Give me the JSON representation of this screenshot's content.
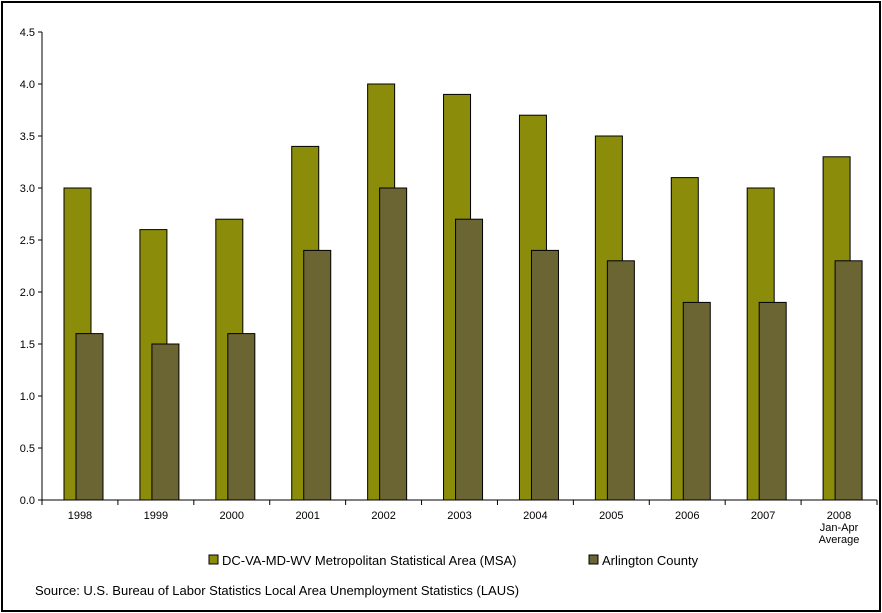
{
  "chart_data": {
    "type": "bar",
    "categories": [
      "1998",
      "1999",
      "2000",
      "2001",
      "2002",
      "2003",
      "2004",
      "2005",
      "2006",
      "2007",
      "2008\nJan-Apr\nAverage"
    ],
    "series": [
      {
        "name": "DC-VA-MD-WV Metropolitan Statistical Area (MSA)",
        "color": "#8b8c0a",
        "values": [
          3.0,
          2.6,
          2.7,
          3.4,
          4.0,
          3.9,
          3.7,
          3.5,
          3.1,
          3.0,
          3.3
        ]
      },
      {
        "name": "Arlington County",
        "color": "#6b6533",
        "values": [
          1.6,
          1.5,
          1.6,
          2.4,
          3.0,
          2.7,
          2.4,
          2.3,
          1.9,
          1.9,
          2.3
        ]
      }
    ],
    "ylim": [
      0,
      4.5
    ],
    "yticks": [
      "0.0",
      "0.5",
      "1.0",
      "1.5",
      "2.0",
      "2.5",
      "3.0",
      "3.5",
      "4.0",
      "4.5"
    ],
    "grid": false,
    "legend_position": "bottom",
    "title": "",
    "xlabel": "",
    "ylabel": ""
  },
  "source_note": "Source:  U.S. Bureau of Labor Statistics Local Area Unemployment Statistics (LAUS)"
}
